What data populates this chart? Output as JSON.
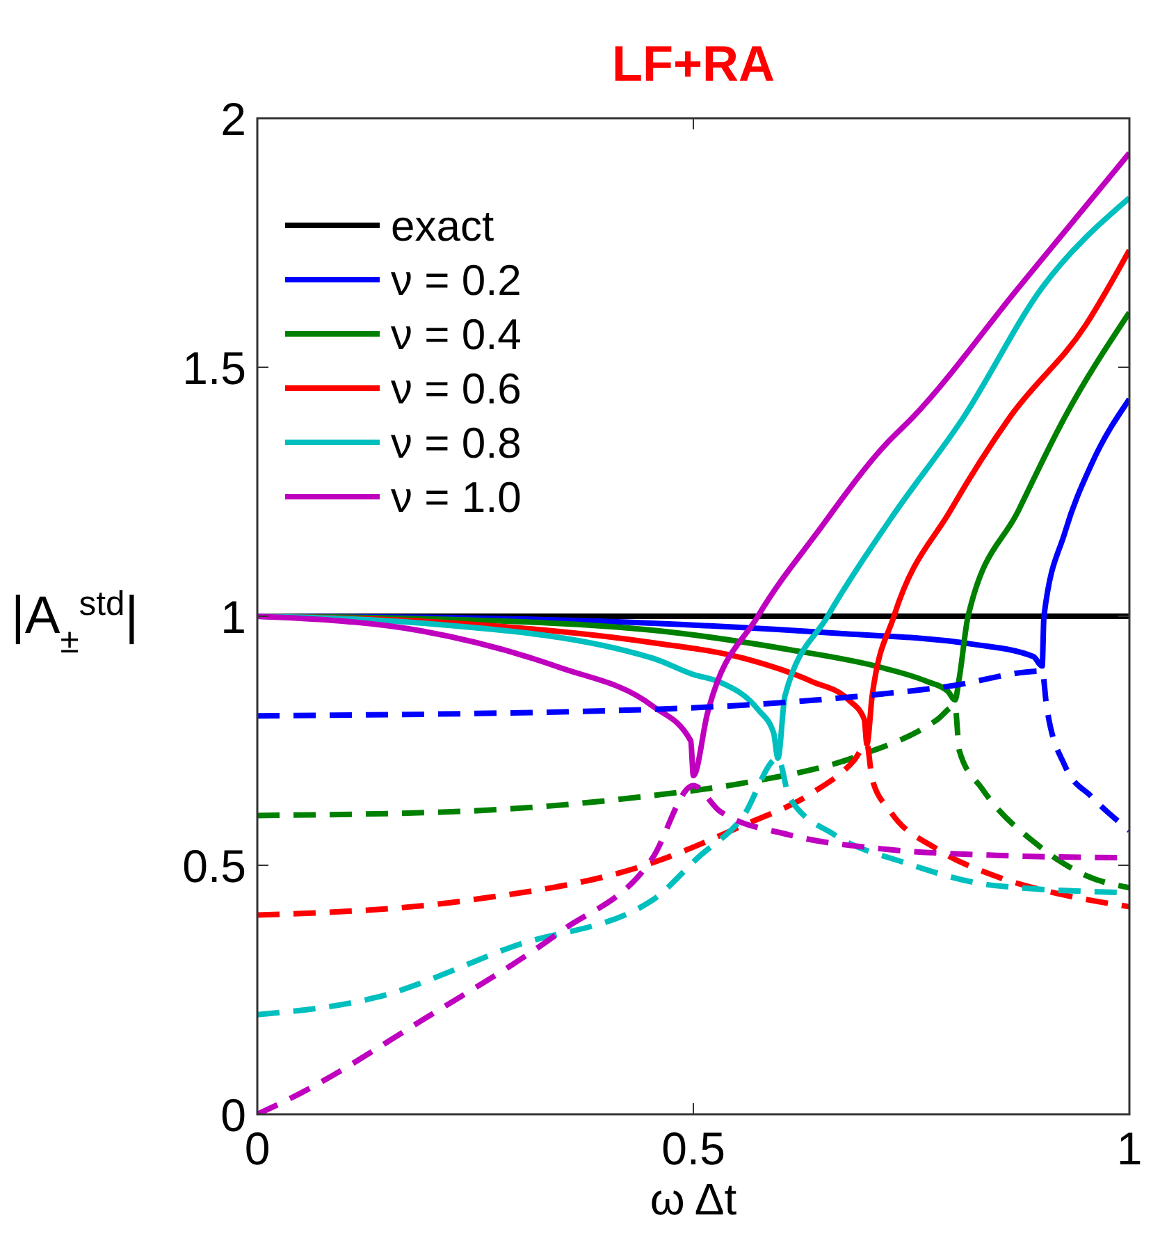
{
  "chart_data": {
    "type": "line",
    "title": "LF+RA",
    "xlabel": "ω Δt",
    "ylabel": "|A$_{±}$$^{std}$|",
    "xlim": [
      0,
      1
    ],
    "ylim": [
      0,
      2
    ],
    "xticks": [
      0,
      0.5,
      1
    ],
    "yticks": [
      0,
      0.5,
      1,
      1.5,
      2
    ],
    "legend": "top left",
    "grid": false,
    "marker": "none",
    "series": [
      {
        "name": "exact",
        "color": "#000000",
        "line_style": "solid",
        "x": [
          0,
          1
        ],
        "values": [
          1,
          1
        ]
      },
      {
        "name": "ν = 0.2",
        "color": "#0000ff",
        "line_style": "solid",
        "x": [
          0,
          0.19,
          0.453,
          0.662,
          0.82,
          0.89,
          0.9,
          0.902,
          0.926,
          0.957,
          1
        ],
        "values": [
          1,
          0.998,
          0.986,
          0.966,
          0.944,
          0.919,
          0.9,
          1.0,
          1.168,
          1.307,
          1.436
        ]
      },
      {
        "name": "ν = 0.4",
        "color": "#008000",
        "line_style": "solid",
        "x": [
          0,
          0.19,
          0.453,
          0.61,
          0.716,
          0.768,
          0.792,
          0.8,
          0.805,
          0.815,
          0.873,
          0.926,
          1
        ],
        "values": [
          1,
          0.995,
          0.972,
          0.933,
          0.897,
          0.869,
          0.849,
          0.832,
          0.877,
          1.0,
          1.213,
          1.4,
          1.61
        ]
      },
      {
        "name": "ν = 0.6",
        "color": "#ff0000",
        "line_style": "solid",
        "x": [
          0,
          0.19,
          0.453,
          0.557,
          0.636,
          0.678,
          0.696,
          0.699,
          0.705,
          0.73,
          0.795,
          0.863,
          0.95,
          1
        ],
        "values": [
          1,
          0.99,
          0.947,
          0.916,
          0.869,
          0.832,
          0.793,
          0.743,
          0.84,
          1.0,
          1.213,
          1.4,
          1.585,
          1.735
        ]
      },
      {
        "name": "ν = 0.8",
        "color": "#00bfbf",
        "line_style": "solid",
        "x": [
          0,
          0.19,
          0.453,
          0.5,
          0.53,
          0.574,
          0.592,
          0.597,
          0.605,
          0.654,
          0.726,
          0.81,
          0.9,
          1
        ],
        "values": [
          1,
          0.986,
          0.916,
          0.883,
          0.868,
          0.813,
          0.766,
          0.715,
          0.84,
          1.0,
          1.195,
          1.4,
          1.66,
          1.84
        ]
      },
      {
        "name": "ν = 1.0",
        "color": "#bf00bf",
        "line_style": "solid",
        "x": [
          0,
          0.19,
          0.347,
          0.453,
          0.497,
          0.5,
          0.516,
          0.574,
          0.642,
          0.72,
          0.752,
          0.873,
          1
        ],
        "values": [
          1,
          0.97,
          0.897,
          0.82,
          0.75,
          0.68,
          0.804,
          1.0,
          1.168,
          1.344,
          1.4,
          1.66,
          1.93
        ]
      },
      {
        "color": "#0000ff",
        "line_style": "dashed",
        "x": [
          0,
          0.453,
          0.662,
          0.795,
          0.9,
          0.905,
          0.926,
          0.957,
          1
        ],
        "values": [
          0.8,
          0.813,
          0.835,
          0.86,
          0.89,
          0.82,
          0.7,
          0.637,
          0.57
        ]
      },
      {
        "color": "#008000",
        "line_style": "dashed",
        "x": [
          0,
          0.243,
          0.453,
          0.557,
          0.69,
          0.78,
          0.8,
          0.805,
          0.831,
          0.894,
          0.952,
          1
        ],
        "values": [
          0.6,
          0.609,
          0.64,
          0.665,
          0.72,
          0.793,
          0.82,
          0.73,
          0.654,
          0.542,
          0.478,
          0.455
        ]
      },
      {
        "color": "#ff0000",
        "line_style": "dashed",
        "x": [
          0,
          0.243,
          0.453,
          0.557,
          0.636,
          0.684,
          0.699,
          0.705,
          0.726,
          0.779,
          0.847,
          0.926,
          1
        ],
        "values": [
          0.4,
          0.43,
          0.505,
          0.58,
          0.645,
          0.71,
          0.743,
          0.673,
          0.608,
          0.533,
          0.478,
          0.44,
          0.417
        ]
      },
      {
        "color": "#00bfbf",
        "line_style": "dashed",
        "x": [
          0,
          0.137,
          0.295,
          0.453,
          0.505,
          0.557,
          0.597,
          0.61,
          0.662,
          0.741,
          0.847,
          1
        ],
        "values": [
          0.2,
          0.235,
          0.338,
          0.43,
          0.515,
          0.598,
          0.715,
          0.637,
          0.561,
          0.506,
          0.459,
          0.445
        ]
      },
      {
        "color": "#bf00bf",
        "line_style": "dashed",
        "x": [
          0,
          0.047,
          0.19,
          0.347,
          0.453,
          0.5,
          0.53,
          0.61,
          0.716,
          0.847,
          1
        ],
        "values": [
          0,
          0.04,
          0.19,
          0.366,
          0.514,
          0.66,
          0.609,
          0.561,
          0.533,
          0.52,
          0.515
        ]
      }
    ]
  }
}
